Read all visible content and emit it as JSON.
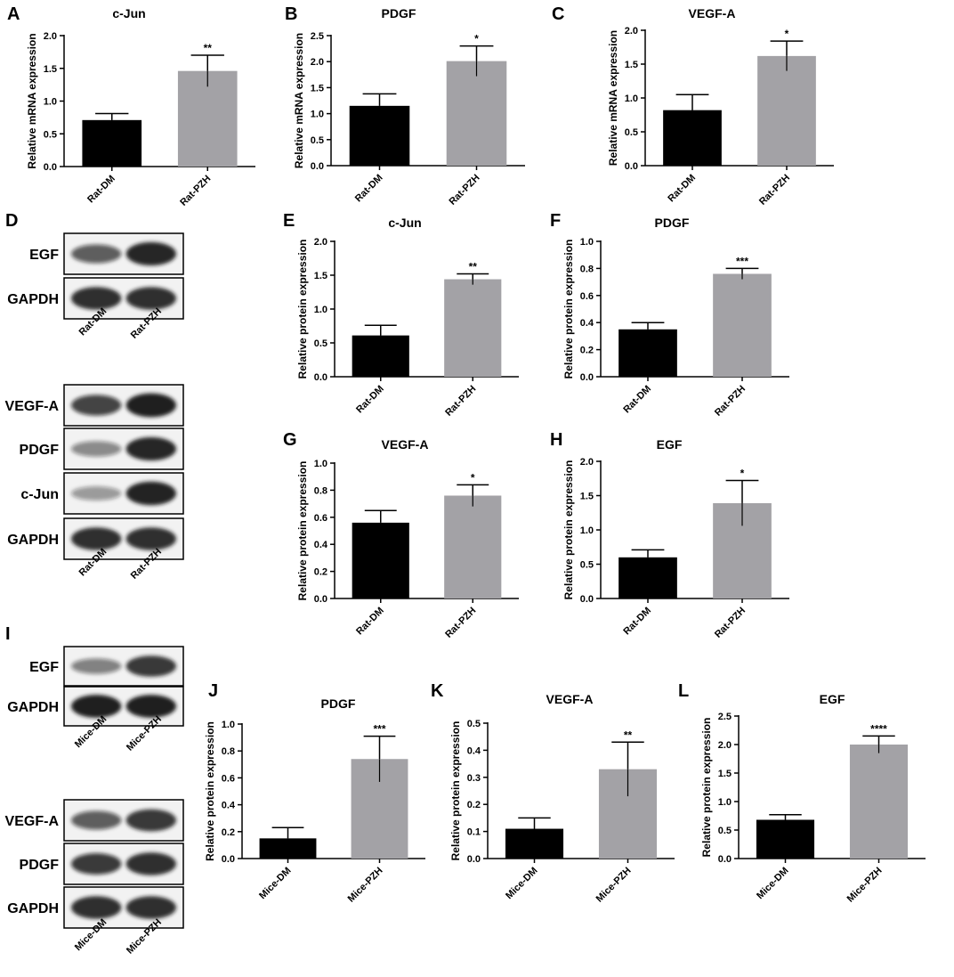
{
  "panel_letters": [
    "A",
    "B",
    "C",
    "D",
    "E",
    "F",
    "G",
    "H",
    "I",
    "J",
    "K",
    "L"
  ],
  "colors": {
    "dm": "#000000",
    "pzh": "#a3a2a6",
    "band": "#141414",
    "blot_bg": "#f2f2f2"
  },
  "chart_data": [
    {
      "id": "A",
      "type": "bar",
      "title": "c-Jun",
      "ylabel": "Relative mRNA expression",
      "categories": [
        "Rat-DM",
        "Rat-PZH"
      ],
      "values": [
        0.71,
        1.46
      ],
      "errors": [
        0.1,
        0.24
      ],
      "significance": "**",
      "ylim": [
        0,
        2.0
      ],
      "yticks": [
        "0.0",
        "0.5",
        "1.0",
        "1.5",
        "2.0"
      ]
    },
    {
      "id": "B",
      "type": "bar",
      "title": "PDGF",
      "ylabel": "Relative mRNA expression",
      "categories": [
        "Rat-DM",
        "Rat-PZH"
      ],
      "values": [
        1.15,
        2.01
      ],
      "errors": [
        0.23,
        0.29
      ],
      "significance": "*",
      "ylim": [
        0,
        2.5
      ],
      "yticks": [
        "0.0",
        "0.5",
        "1.0",
        "1.5",
        "2.0",
        "2.5"
      ]
    },
    {
      "id": "C",
      "type": "bar",
      "title": "VEGF-A",
      "ylabel": "Relative mRNA expression",
      "categories": [
        "Rat-DM",
        "Rat-PZH"
      ],
      "values": [
        0.82,
        1.62
      ],
      "errors": [
        0.23,
        0.22
      ],
      "significance": "*",
      "ylim": [
        0,
        2.0
      ],
      "yticks": [
        "0.0",
        "0.5",
        "1.0",
        "1.5",
        "2.0"
      ]
    },
    {
      "id": "E",
      "type": "bar",
      "title": "c-Jun",
      "ylabel": "Relative protein expression",
      "categories": [
        "Rat-DM",
        "Rat-PZH"
      ],
      "values": [
        0.61,
        1.44
      ],
      "errors": [
        0.15,
        0.08
      ],
      "significance": "**",
      "ylim": [
        0,
        2.0
      ],
      "yticks": [
        "0.0",
        "0.5",
        "1.0",
        "1.5",
        "2.0"
      ]
    },
    {
      "id": "F",
      "type": "bar",
      "title": "PDGF",
      "ylabel": "Relative protein expression",
      "categories": [
        "Rat-DM",
        "Rat-PZH"
      ],
      "values": [
        0.35,
        0.76
      ],
      "errors": [
        0.05,
        0.04
      ],
      "significance": "***",
      "ylim": [
        0,
        1.0
      ],
      "yticks": [
        "0.0",
        "0.2",
        "0.4",
        "0.6",
        "0.8",
        "1.0"
      ]
    },
    {
      "id": "G",
      "type": "bar",
      "title": "VEGF-A",
      "ylabel": "Relative protein expression",
      "categories": [
        "Rat-DM",
        "Rat-PZH"
      ],
      "values": [
        0.56,
        0.76
      ],
      "errors": [
        0.09,
        0.08
      ],
      "significance": "*",
      "ylim": [
        0,
        1.0
      ],
      "yticks": [
        "0.0",
        "0.2",
        "0.4",
        "0.6",
        "0.8",
        "1.0"
      ]
    },
    {
      "id": "H",
      "type": "bar",
      "title": "EGF",
      "ylabel": "Relative protein expression",
      "categories": [
        "Rat-DM",
        "Rat-PZH"
      ],
      "values": [
        0.6,
        1.39
      ],
      "errors": [
        0.11,
        0.33
      ],
      "significance": "*",
      "ylim": [
        0,
        2.0
      ],
      "yticks": [
        "0.0",
        "0.5",
        "1.0",
        "1.5",
        "2.0"
      ]
    },
    {
      "id": "J",
      "type": "bar",
      "title": "PDGF",
      "ylabel": "Relative protein expression",
      "categories": [
        "Mice-DM",
        "Mice-PZH"
      ],
      "values": [
        0.15,
        0.74
      ],
      "errors": [
        0.08,
        0.17
      ],
      "significance": "***",
      "ylim": [
        0,
        1.0
      ],
      "yticks": [
        "0.0",
        "0.2",
        "0.4",
        "0.6",
        "0.8",
        "1.0"
      ]
    },
    {
      "id": "K",
      "type": "bar",
      "title": "VEGF-A",
      "ylabel": "Relative protein expression",
      "categories": [
        "Mice-DM",
        "Mice-PZH"
      ],
      "values": [
        0.11,
        0.33
      ],
      "errors": [
        0.04,
        0.1
      ],
      "significance": "**",
      "ylim": [
        0,
        0.5
      ],
      "yticks": [
        "0.0",
        "0.1",
        "0.2",
        "0.3",
        "0.4",
        "0.5"
      ]
    },
    {
      "id": "L",
      "type": "bar",
      "title": "EGF",
      "ylabel": "Relative protein expression",
      "categories": [
        "Mice-DM",
        "Mice-PZH"
      ],
      "values": [
        0.68,
        2.0
      ],
      "errors": [
        0.09,
        0.15
      ],
      "significance": "****",
      "ylim": [
        0,
        2.5
      ],
      "yticks": [
        "0.0",
        "0.5",
        "1.0",
        "1.5",
        "2.0",
        "2.5"
      ]
    }
  ],
  "blots": [
    {
      "id": "D1",
      "labels": [
        "EGF",
        "GAPDH"
      ],
      "samples": [
        "Rat-DM",
        "Rat-PZH"
      ]
    },
    {
      "id": "D2",
      "labels": [
        "VEGF-A",
        "PDGF",
        "c-Jun",
        "GAPDH"
      ],
      "samples": [
        "Rat-DM",
        "Rat-PZH"
      ]
    },
    {
      "id": "I1",
      "labels": [
        "EGF",
        "GAPDH"
      ],
      "samples": [
        "Mice-DM",
        "Mice-PZH"
      ]
    },
    {
      "id": "I2",
      "labels": [
        "VEGF-A",
        "PDGF",
        "GAPDH"
      ],
      "samples": [
        "Mice-DM",
        "Mice-PZH"
      ]
    }
  ]
}
